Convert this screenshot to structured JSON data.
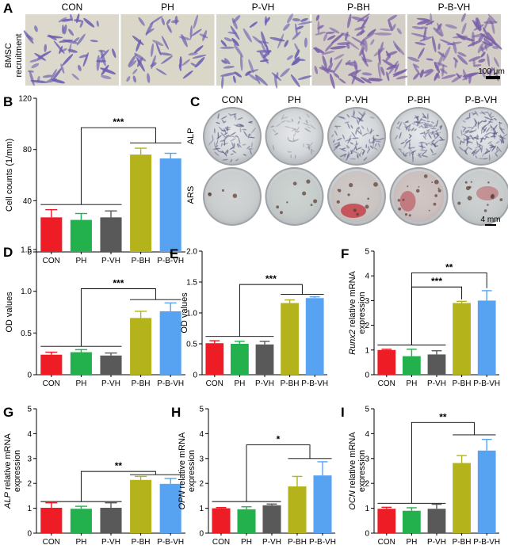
{
  "colors": {
    "CON": "#ee1c24",
    "PH": "#22b14c",
    "P-VH": "#595959",
    "P-BH": "#b5b31c",
    "P-B-VH": "#57a3f2"
  },
  "panel_a": {
    "label": "A",
    "groups": [
      "CON",
      "PH",
      "P-VH",
      "P-BH",
      "P-B-VH"
    ],
    "row_label_1": "BMSC",
    "row_label_2": "recruitment",
    "scale_bar": "100 μm"
  },
  "panel_c": {
    "label": "C",
    "groups": [
      "CON",
      "PH",
      "P-VH",
      "P-BH",
      "P-B-VH"
    ],
    "row_labels": [
      "ALP",
      "ARS"
    ],
    "scale_bar": "4 mm"
  },
  "chart_data": [
    {
      "panel": "B",
      "type": "bar",
      "categories": [
        "CON",
        "PH",
        "P-VH",
        "P-BH",
        "P-B-VH"
      ],
      "values": [
        27,
        25,
        27,
        76,
        73
      ],
      "errors": [
        6,
        5,
        5,
        5,
        4
      ],
      "ylabel_parts": [
        {
          "t": "Cell counts (1/mm)",
          "i": false
        }
      ],
      "ylim": [
        0,
        120
      ],
      "yticks": [
        0,
        40,
        80,
        120
      ],
      "significance": {
        "text": "***",
        "left": [
          0,
          1,
          2
        ],
        "right": [
          3,
          4
        ],
        "left_y": 37,
        "right_y": 85,
        "top_y": 97
      }
    },
    {
      "panel": "D",
      "type": "bar",
      "categories": [
        "CON",
        "PH",
        "P-VH",
        "P-BH",
        "P-B-VH"
      ],
      "values": [
        0.24,
        0.27,
        0.23,
        0.68,
        0.76
      ],
      "errors": [
        0.03,
        0.03,
        0.03,
        0.08,
        0.1
      ],
      "ylabel_parts": [
        {
          "t": "OD values",
          "i": false
        }
      ],
      "ylim": [
        0,
        1.5
      ],
      "yticks": [
        0,
        0.5,
        1.0,
        1.5
      ],
      "yticklabels": [
        "0",
        "0.5",
        "1.0",
        "1.5"
      ],
      "significance": {
        "text": "***",
        "left": [
          0,
          1,
          2
        ],
        "right": [
          3,
          4
        ],
        "left_y": 0.34,
        "right_y": 0.9,
        "top_y": 1.03
      }
    },
    {
      "panel": "E",
      "type": "bar",
      "categories": [
        "CON",
        "PH",
        "P-VH",
        "P-BH",
        "P-B-VH"
      ],
      "values": [
        0.51,
        0.5,
        0.49,
        1.16,
        1.24
      ],
      "errors": [
        0.04,
        0.04,
        0.05,
        0.05,
        0.02
      ],
      "ylabel_parts": [
        {
          "t": "OD values",
          "i": false
        }
      ],
      "ylim": [
        0,
        2.0
      ],
      "yticks": [
        0,
        0.5,
        1.0,
        1.5,
        2.0
      ],
      "yticklabels": [
        "0",
        "0.5",
        "1.0",
        "1.5",
        "2.0"
      ],
      "significance": {
        "text": "***",
        "left": [
          0,
          1,
          2
        ],
        "right": [
          3,
          4
        ],
        "left_y": 0.62,
        "right_y": 1.3,
        "top_y": 1.46
      }
    },
    {
      "panel": "F",
      "type": "bar",
      "categories": [
        "CON",
        "PH",
        "P-VH",
        "P-BH",
        "P-B-VH"
      ],
      "values": [
        1.0,
        0.75,
        0.82,
        2.9,
        3.0
      ],
      "errors": [
        0.03,
        0.28,
        0.15,
        0.07,
        0.4
      ],
      "ylabel_parts": [
        {
          "t": "Runx2",
          "i": true
        },
        {
          "t": " relative mRNA",
          "i": false
        }
      ],
      "ylabel_line2": "expression",
      "ylim": [
        0,
        5
      ],
      "yticks": [
        0,
        1,
        2,
        3,
        4,
        5
      ],
      "significance_multi": [
        {
          "text": "***",
          "left": [
            0,
            1,
            2
          ],
          "right": [
            3
          ],
          "left_y": 1.2,
          "right_y": 3.05,
          "top_y": 3.55
        },
        {
          "text": "**",
          "left": [
            0,
            1,
            2
          ],
          "right": [
            4
          ],
          "left_y": 1.2,
          "right_y": 3.5,
          "top_y": 4.12
        }
      ]
    },
    {
      "panel": "G",
      "type": "bar",
      "categories": [
        "CON",
        "PH",
        "P-VH",
        "P-BH",
        "P-B-VH"
      ],
      "values": [
        1.02,
        0.98,
        1.02,
        2.14,
        1.98
      ],
      "errors": [
        0.2,
        0.1,
        0.2,
        0.14,
        0.22
      ],
      "ylabel_parts": [
        {
          "t": "ALP",
          "i": true
        },
        {
          "t": " relative mRNA",
          "i": false
        }
      ],
      "ylabel_line2": "expression",
      "ylim": [
        0,
        5
      ],
      "yticks": [
        0,
        1,
        2,
        3,
        4,
        5
      ],
      "significance": {
        "text": "**",
        "left": [
          0,
          1,
          2
        ],
        "right": [
          3,
          4
        ],
        "left_y": 1.27,
        "right_y": 2.35,
        "top_y": 2.48
      }
    },
    {
      "panel": "H",
      "type": "bar",
      "categories": [
        "CON",
        "PH",
        "P-VH",
        "P-BH",
        "P-B-VH"
      ],
      "values": [
        1.0,
        0.96,
        1.12,
        1.88,
        2.32
      ],
      "errors": [
        0.03,
        0.1,
        0.05,
        0.4,
        0.55
      ],
      "ylabel_parts": [
        {
          "t": "OPN",
          "i": true
        },
        {
          "t": " relative mRNA",
          "i": false
        }
      ],
      "ylabel_line2": "expression",
      "ylim": [
        0,
        5
      ],
      "yticks": [
        0,
        1,
        2,
        3,
        4,
        5
      ],
      "significance": {
        "text": "*",
        "left": [
          0,
          1,
          2
        ],
        "right": [
          3,
          4
        ],
        "left_y": 1.27,
        "right_y": 3.0,
        "top_y": 3.55
      }
    },
    {
      "panel": "I",
      "type": "bar",
      "categories": [
        "CON",
        "PH",
        "P-VH",
        "P-BH",
        "P-B-VH"
      ],
      "values": [
        0.98,
        0.9,
        0.98,
        2.82,
        3.32
      ],
      "errors": [
        0.06,
        0.12,
        0.18,
        0.3,
        0.45
      ],
      "ylabel_parts": [
        {
          "t": "OCN",
          "i": true
        },
        {
          "t": " relative mRNA",
          "i": false
        }
      ],
      "ylabel_line2": "expression",
      "ylim": [
        0,
        5
      ],
      "yticks": [
        0,
        1,
        2,
        3,
        4,
        5
      ],
      "significance": {
        "text": "**",
        "left": [
          0,
          1,
          2
        ],
        "right": [
          3,
          4
        ],
        "left_y": 1.2,
        "right_y": 3.95,
        "top_y": 4.45
      }
    }
  ]
}
